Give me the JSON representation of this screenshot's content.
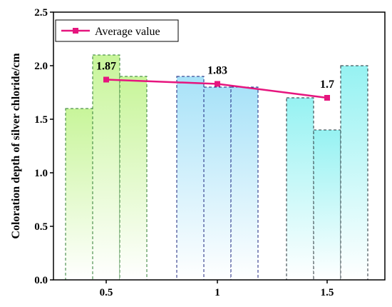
{
  "chart_data": {
    "type": "bar",
    "title": "",
    "xlabel": "",
    "ylabel": "Coloration depth of silver chloride/cm",
    "ylim": [
      0,
      2.5
    ],
    "yticks": [
      0.0,
      0.5,
      1.0,
      1.5,
      2.0,
      2.5
    ],
    "ytick_labels": [
      "0.0",
      "0.5",
      "1.0",
      "1.5",
      "2.0",
      "2.5"
    ],
    "categories": [
      "0.5",
      "1",
      "1.5"
    ],
    "groups": [
      {
        "category": "0.5",
        "values": [
          1.6,
          2.1,
          1.9
        ],
        "color_top": "#c8f59a",
        "edge_color": "#2e7d32"
      },
      {
        "category": "1",
        "values": [
          1.9,
          1.8,
          1.8
        ],
        "color_top": "#a8e2f8",
        "edge_color": "#1a237e"
      },
      {
        "category": "1.5",
        "values": [
          1.7,
          1.4,
          2.0
        ],
        "color_top": "#96f2f2",
        "edge_color": "#263238"
      }
    ],
    "series": [
      {
        "name": "Average value",
        "type": "line",
        "x": [
          "0.5",
          "1",
          "1.5"
        ],
        "values": [
          1.87,
          1.83,
          1.7
        ],
        "color": "#e6157e",
        "marker": "square"
      }
    ],
    "data_labels": [
      "1.87",
      "1.83",
      "1.7"
    ],
    "legend_position": "top-left",
    "grid": false
  }
}
